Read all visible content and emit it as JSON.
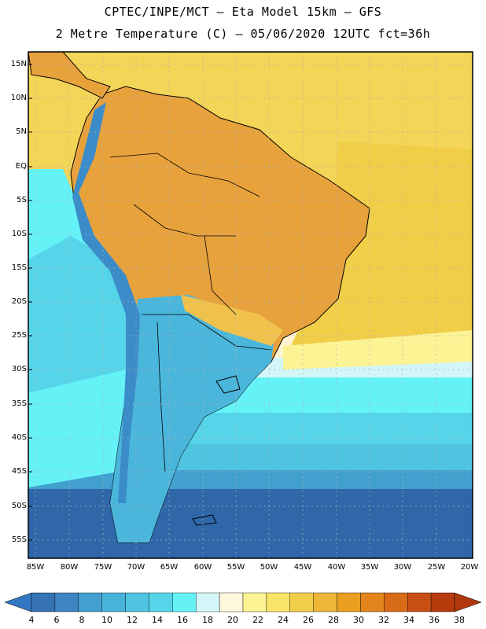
{
  "title_line1": "CPTEC/INPE/MCT –  Eta Model 15km – GFS",
  "title_line2": "2 Metre Temperature (C) – 05/06/2020 12UTC fct=36h",
  "lat_labels": [
    "15N",
    "10N",
    "5N",
    "EQ",
    "5S",
    "10S",
    "15S",
    "20S",
    "25S",
    "30S",
    "35S",
    "40S",
    "45S",
    "50S",
    "55S"
  ],
  "lon_labels": [
    "85W",
    "80W",
    "75W",
    "70W",
    "65W",
    "60W",
    "55W",
    "50W",
    "45W",
    "40W",
    "35W",
    "30W",
    "25W",
    "20W"
  ],
  "colorbar": {
    "ticks": [
      "4",
      "6",
      "8",
      "10",
      "12",
      "14",
      "16",
      "18",
      "20",
      "22",
      "24",
      "26",
      "28",
      "30",
      "32",
      "34",
      "36",
      "38"
    ],
    "colors": [
      "#3573b4",
      "#3f85c3",
      "#42a0cf",
      "#48b3d9",
      "#4fc4e0",
      "#56d5ea",
      "#64f2f7",
      "#d3f7f9",
      "#fff7de",
      "#fcf394",
      "#f9e467",
      "#f1ce48",
      "#ecb736",
      "#ea9f21",
      "#e3841d",
      "#d86b18",
      "#c84f14",
      "#b63b0d"
    ],
    "low_color": "#3478c5",
    "high_color": "#b0380c"
  },
  "region_colors": {
    "ocean_north": "#f3d557",
    "ocean_warm": "#f1ce48",
    "band_22": "#fff4cf",
    "band_20": "#d3f7f9",
    "band_18": "#64f2f7",
    "band_16": "#56d5ea",
    "band_14": "#4fc4e0",
    "band_10": "#42a0cf",
    "band_6": "#2f67a9",
    "land_hot": "#e8a23c",
    "land_warm": "#f0c24c",
    "andes": "#3b8cc8",
    "patagonia": "#4bb6dc"
  }
}
